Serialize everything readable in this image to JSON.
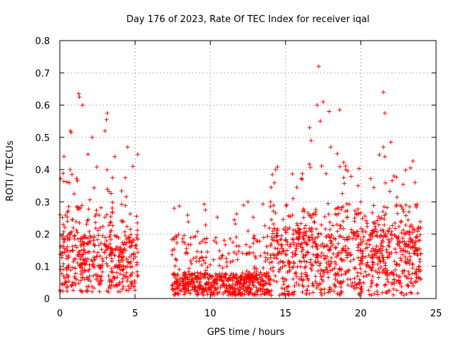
{
  "chart_data": {
    "type": "scatter",
    "title": "Day 176 of 2023, Rate Of TEC Index for receiver iqal",
    "xlabel": "GPS time / hours",
    "ylabel": "ROTI / TECUs",
    "xlim": [
      0,
      25
    ],
    "ylim": [
      0,
      0.8
    ],
    "xticks": [
      0,
      5,
      10,
      15,
      20,
      25
    ],
    "yticks": [
      0,
      0.1,
      0.2,
      0.3,
      0.4,
      0.5,
      0.6,
      0.7,
      0.8
    ],
    "xtick_labels": [
      "0",
      "5",
      "10",
      "15",
      "20",
      "25"
    ],
    "ytick_labels": [
      "0",
      "0.1",
      "0.2",
      "0.3",
      "0.4",
      "0.5",
      "0.6",
      "0.7",
      "0.8"
    ],
    "grid": true,
    "marker": "+",
    "color": "#ff0000",
    "series": [
      {
        "name": "ROTI",
        "segments": [
          {
            "x_start": 0.0,
            "x_end": 5.2,
            "base_min": 0.02,
            "base_max": 0.2,
            "peak": 0.45
          },
          {
            "x_start": 7.4,
            "x_end": 14.0,
            "base_min": 0.01,
            "base_max": 0.08,
            "peak": 0.3
          },
          {
            "x_start": 14.0,
            "x_end": 24.0,
            "base_min": 0.01,
            "base_max": 0.22,
            "peak": 0.45
          }
        ],
        "notable_points": [
          {
            "x": 1.25,
            "y": 0.635
          },
          {
            "x": 1.3,
            "y": 0.625
          },
          {
            "x": 1.5,
            "y": 0.6
          },
          {
            "x": 0.7,
            "y": 0.52
          },
          {
            "x": 0.75,
            "y": 0.515
          },
          {
            "x": 3.15,
            "y": 0.575
          },
          {
            "x": 3.1,
            "y": 0.555
          },
          {
            "x": 2.15,
            "y": 0.5
          },
          {
            "x": 3.0,
            "y": 0.52
          },
          {
            "x": 3.65,
            "y": 0.44
          },
          {
            "x": 4.5,
            "y": 0.47
          },
          {
            "x": 4.85,
            "y": 0.41
          },
          {
            "x": 7.6,
            "y": 0.28
          },
          {
            "x": 12.5,
            "y": 0.3
          },
          {
            "x": 14.0,
            "y": 0.3
          },
          {
            "x": 17.2,
            "y": 0.72
          },
          {
            "x": 17.1,
            "y": 0.6
          },
          {
            "x": 17.5,
            "y": 0.61
          },
          {
            "x": 17.9,
            "y": 0.58
          },
          {
            "x": 18.6,
            "y": 0.585
          },
          {
            "x": 17.3,
            "y": 0.55
          },
          {
            "x": 16.6,
            "y": 0.53
          },
          {
            "x": 16.7,
            "y": 0.49
          },
          {
            "x": 18.0,
            "y": 0.47
          },
          {
            "x": 21.5,
            "y": 0.64
          },
          {
            "x": 21.6,
            "y": 0.575
          },
          {
            "x": 21.5,
            "y": 0.47
          },
          {
            "x": 21.6,
            "y": 0.44
          },
          {
            "x": 22.0,
            "y": 0.485
          },
          {
            "x": 22.2,
            "y": 0.38
          },
          {
            "x": 23.3,
            "y": 0.405
          },
          {
            "x": 23.6,
            "y": 0.36
          },
          {
            "x": 19.0,
            "y": 0.4
          },
          {
            "x": 20.0,
            "y": 0.3
          }
        ]
      }
    ]
  }
}
